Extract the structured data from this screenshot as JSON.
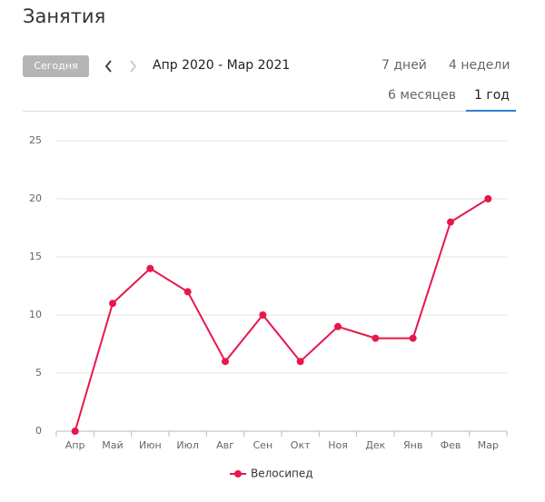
{
  "header": {
    "title": "Занятия",
    "today_button": "Сегодня",
    "date_range": "Апр 2020 - Мар 2021",
    "tabs": [
      "7 дней",
      "4 недели",
      "6 месяцев",
      "1 год"
    ],
    "active_tab": 3
  },
  "chart_data": {
    "type": "line",
    "categories": [
      "Апр",
      "Май",
      "Июн",
      "Июл",
      "Авг",
      "Сен",
      "Окт",
      "Ноя",
      "Дек",
      "Янв",
      "Фев",
      "Мар"
    ],
    "series": [
      {
        "name": "Велосипед",
        "color": "#e8174a",
        "values": [
          0,
          11,
          14,
          12,
          6,
          10,
          6,
          9,
          8,
          8,
          18,
          20
        ]
      }
    ],
    "ylim": [
      0,
      25
    ],
    "yticks": [
      0,
      5,
      10,
      15,
      20,
      25
    ],
    "grid": true,
    "legend": "bottom"
  }
}
